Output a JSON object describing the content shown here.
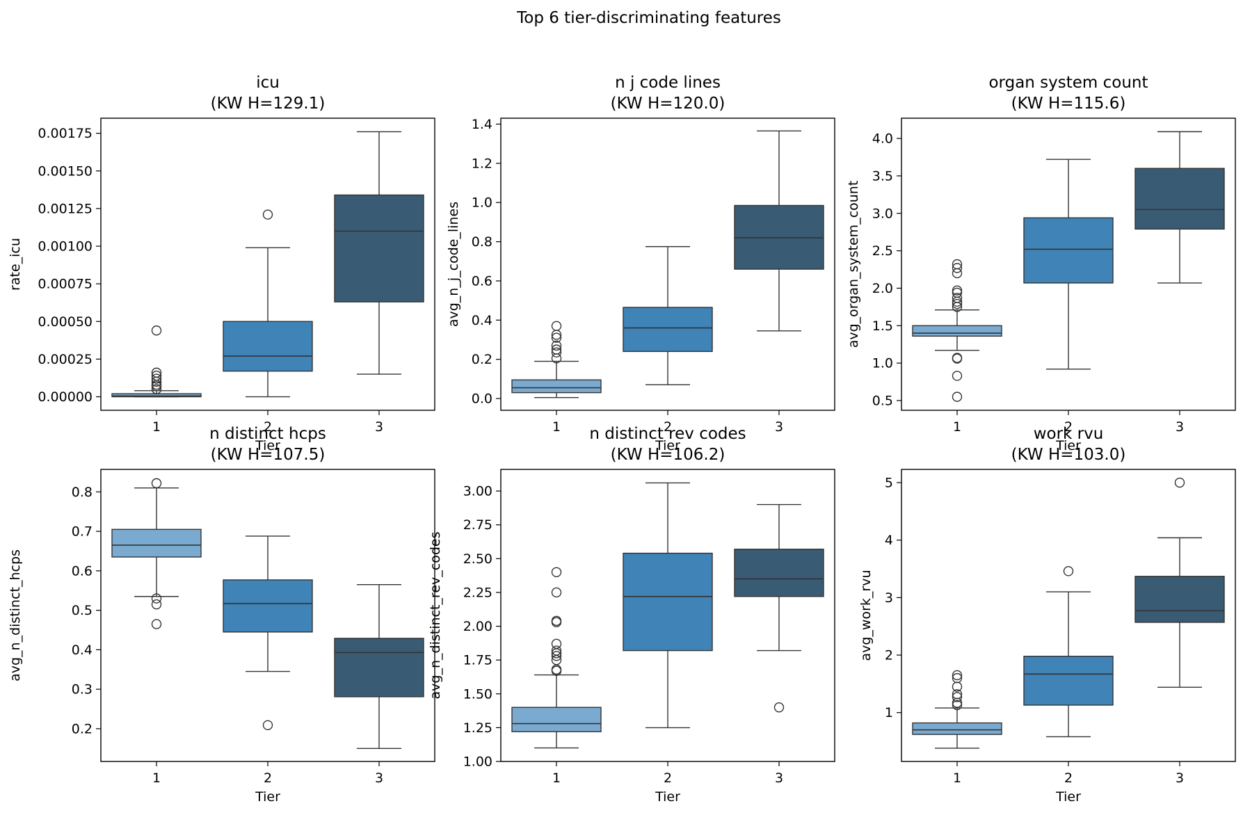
{
  "suptitle": "Top 6 tier-discriminating features",
  "colors": {
    "1": "#7aaad0",
    "2": "#3f83b7",
    "3": "#395b74"
  },
  "chart_data": [
    {
      "type": "box",
      "title": "icu",
      "subtitle": "(KW H=129.1)",
      "xlabel": "Tier",
      "ylabel": "rate_icu",
      "categories": [
        "1",
        "2",
        "3"
      ],
      "ylim": [
        -9e-05,
        0.00185
      ],
      "yticks": [
        0.0,
        0.00025,
        0.0005,
        0.00075,
        0.001,
        0.00125,
        0.0015,
        0.00175
      ],
      "yticklabels": [
        "0.00000",
        "0.00025",
        "0.00050",
        "0.00075",
        "0.00100",
        "0.00125",
        "0.00150",
        "0.00175"
      ],
      "boxes": [
        {
          "whislo": 0.0,
          "q1": 0.0,
          "med": 5e-06,
          "q3": 2e-05,
          "whishi": 4e-05,
          "fliers": [
            0.00044,
            0.00016,
            0.00014,
            0.00012,
            0.0001,
            8e-05,
            7e-05,
            5e-05
          ]
        },
        {
          "whislo": 0.0,
          "q1": 0.00017,
          "med": 0.00027,
          "q3": 0.0005,
          "whishi": 0.00099,
          "fliers": [
            0.00121
          ]
        },
        {
          "whislo": 0.00015,
          "q1": 0.00063,
          "med": 0.0011,
          "q3": 0.00134,
          "whishi": 0.00176,
          "fliers": []
        }
      ]
    },
    {
      "type": "box",
      "title": "n j code lines",
      "subtitle": "(KW H=120.0)",
      "xlabel": "Tier",
      "ylabel": "avg_n_j_code_lines",
      "categories": [
        "1",
        "2",
        "3"
      ],
      "ylim": [
        -0.06,
        1.43
      ],
      "yticks": [
        0.0,
        0.2,
        0.4,
        0.6,
        0.8,
        1.0,
        1.2,
        1.4
      ],
      "yticklabels": [
        "0.0",
        "0.2",
        "0.4",
        "0.6",
        "0.8",
        "1.0",
        "1.2",
        "1.4"
      ],
      "boxes": [
        {
          "whislo": 0.005,
          "q1": 0.03,
          "med": 0.055,
          "q3": 0.095,
          "whishi": 0.19,
          "fliers": [
            0.37,
            0.325,
            0.31,
            0.27,
            0.25,
            0.235,
            0.205
          ]
        },
        {
          "whislo": 0.07,
          "q1": 0.24,
          "med": 0.36,
          "q3": 0.465,
          "whishi": 0.775,
          "fliers": []
        },
        {
          "whislo": 0.345,
          "q1": 0.66,
          "med": 0.82,
          "q3": 0.985,
          "whishi": 1.365,
          "fliers": []
        }
      ]
    },
    {
      "type": "box",
      "title": "organ system count",
      "subtitle": "(KW H=115.6)",
      "xlabel": "Tier",
      "ylabel": "avg_organ_system_count",
      "categories": [
        "1",
        "2",
        "3"
      ],
      "ylim": [
        0.37,
        4.27
      ],
      "yticks": [
        0.5,
        1.0,
        1.5,
        2.0,
        2.5,
        3.0,
        3.5,
        4.0
      ],
      "yticklabels": [
        "0.5",
        "1.0",
        "1.5",
        "2.0",
        "2.5",
        "3.0",
        "3.5",
        "4.0"
      ],
      "boxes": [
        {
          "whislo": 1.17,
          "q1": 1.36,
          "med": 1.4,
          "q3": 1.5,
          "whishi": 1.71,
          "fliers": [
            2.32,
            2.27,
            2.2,
            1.97,
            1.94,
            1.87,
            1.82,
            1.79,
            1.75,
            1.07,
            1.06,
            0.83,
            0.55
          ]
        },
        {
          "whislo": 0.92,
          "q1": 2.07,
          "med": 2.52,
          "q3": 2.94,
          "whishi": 3.72,
          "fliers": []
        },
        {
          "whislo": 2.07,
          "q1": 2.79,
          "med": 3.05,
          "q3": 3.6,
          "whishi": 4.09,
          "fliers": []
        }
      ]
    },
    {
      "type": "box",
      "title": "n distinct hcps",
      "subtitle": "(KW H=107.5)",
      "xlabel": "Tier",
      "ylabel": "avg_n_distinct_hcps",
      "categories": [
        "1",
        "2",
        "3"
      ],
      "ylim": [
        0.117,
        0.857
      ],
      "yticks": [
        0.2,
        0.3,
        0.4,
        0.5,
        0.6,
        0.7,
        0.8
      ],
      "yticklabels": [
        "0.2",
        "0.3",
        "0.4",
        "0.5",
        "0.6",
        "0.7",
        "0.8"
      ],
      "boxes": [
        {
          "whislo": 0.535,
          "q1": 0.635,
          "med": 0.665,
          "q3": 0.705,
          "whishi": 0.81,
          "fliers": [
            0.822,
            0.53,
            0.515,
            0.465
          ]
        },
        {
          "whislo": 0.345,
          "q1": 0.445,
          "med": 0.517,
          "q3": 0.577,
          "whishi": 0.688,
          "fliers": [
            0.209
          ]
        },
        {
          "whislo": 0.15,
          "q1": 0.281,
          "med": 0.393,
          "q3": 0.429,
          "whishi": 0.565,
          "fliers": []
        }
      ]
    },
    {
      "type": "box",
      "title": "n distinct rev codes",
      "subtitle": "(KW H=106.2)",
      "xlabel": "Tier",
      "ylabel": "avg_n_distinct_rev_codes",
      "categories": [
        "1",
        "2",
        "3"
      ],
      "ylim": [
        1.0,
        3.16
      ],
      "yticks": [
        1.0,
        1.25,
        1.5,
        1.75,
        2.0,
        2.25,
        2.5,
        2.75,
        3.0
      ],
      "yticklabels": [
        "1.00",
        "1.25",
        "1.50",
        "1.75",
        "2.00",
        "2.25",
        "2.50",
        "2.75",
        "3.00"
      ],
      "boxes": [
        {
          "whislo": 1.1,
          "q1": 1.22,
          "med": 1.28,
          "q3": 1.4,
          "whishi": 1.64,
          "fliers": [
            2.4,
            2.25,
            2.04,
            2.03,
            1.87,
            1.82,
            1.8,
            1.78,
            1.75,
            1.68,
            1.67
          ]
        },
        {
          "whislo": 1.25,
          "q1": 1.82,
          "med": 2.22,
          "q3": 2.54,
          "whishi": 3.06,
          "fliers": []
        },
        {
          "whislo": 1.82,
          "q1": 2.22,
          "med": 2.35,
          "q3": 2.57,
          "whishi": 2.9,
          "fliers": [
            1.4
          ]
        }
      ]
    },
    {
      "type": "box",
      "title": "work rvu",
      "subtitle": "(KW H=103.0)",
      "xlabel": "Tier",
      "ylabel": "avg_work_rvu",
      "categories": [
        "1",
        "2",
        "3"
      ],
      "ylim": [
        0.15,
        5.23
      ],
      "yticks": [
        1,
        2,
        3,
        4,
        5
      ],
      "yticklabels": [
        "1",
        "2",
        "3",
        "4",
        "5"
      ],
      "boxes": [
        {
          "whislo": 0.38,
          "q1": 0.62,
          "med": 0.7,
          "q3": 0.82,
          "whishi": 1.08,
          "fliers": [
            1.65,
            1.6,
            1.45,
            1.32,
            1.27,
            1.17,
            1.13
          ]
        },
        {
          "whislo": 0.58,
          "q1": 1.13,
          "med": 1.67,
          "q3": 1.98,
          "whishi": 3.1,
          "fliers": [
            3.46
          ]
        },
        {
          "whislo": 1.44,
          "q1": 2.57,
          "med": 2.77,
          "q3": 3.37,
          "whishi": 4.04,
          "fliers": [
            5.0
          ]
        }
      ]
    }
  ]
}
